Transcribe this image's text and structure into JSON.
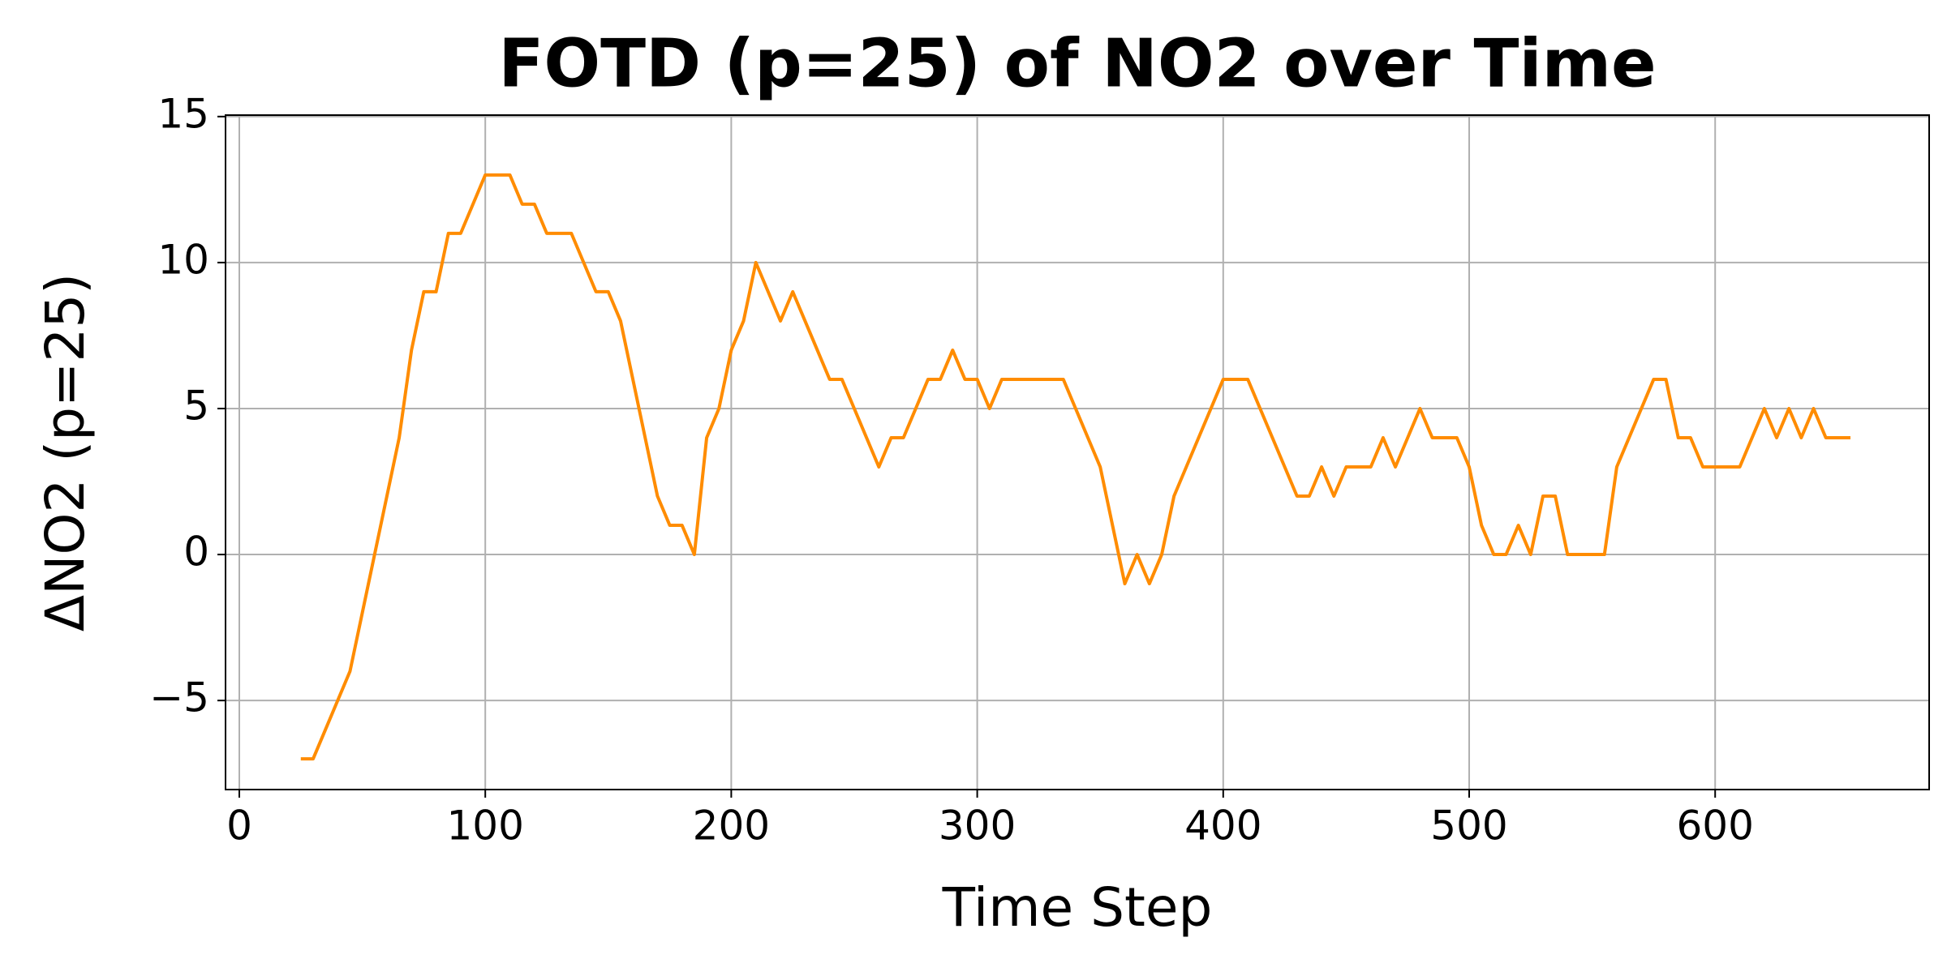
{
  "chart_data": {
    "type": "line",
    "title": "FOTD (p=25) of NO2 over Time",
    "x_label": "Time Step",
    "y_label": "ΔNO2 (p=25)",
    "x": [
      25,
      30,
      35,
      40,
      45,
      50,
      55,
      60,
      65,
      70,
      75,
      80,
      85,
      90,
      95,
      100,
      105,
      110,
      115,
      120,
      125,
      130,
      135,
      140,
      145,
      150,
      155,
      160,
      165,
      170,
      175,
      180,
      185,
      190,
      195,
      200,
      205,
      210,
      215,
      220,
      225,
      230,
      235,
      240,
      245,
      250,
      255,
      260,
      265,
      270,
      275,
      280,
      285,
      290,
      295,
      300,
      305,
      310,
      315,
      320,
      325,
      330,
      335,
      340,
      345,
      350,
      355,
      360,
      365,
      370,
      375,
      380,
      385,
      390,
      395,
      400,
      405,
      410,
      415,
      420,
      425,
      430,
      435,
      440,
      445,
      450,
      455,
      460,
      465,
      470,
      475,
      480,
      485,
      490,
      495,
      500,
      505,
      510,
      515,
      520,
      525,
      530,
      535,
      540,
      545,
      550,
      555,
      560,
      565,
      570,
      575,
      580,
      585,
      590,
      595,
      600,
      605,
      610,
      615,
      620,
      625,
      630,
      635,
      640,
      645,
      650,
      655
    ],
    "series": [
      {
        "name": "ΔNO2",
        "color": "#ff8c00",
        "values": [
          -7,
          -7,
          -6,
          -5,
          -4,
          -2,
          0,
          2,
          4,
          7,
          9,
          9,
          11,
          11,
          12,
          13,
          13,
          13,
          12,
          12,
          11,
          11,
          11,
          10,
          9,
          9,
          8,
          6,
          4,
          2,
          1,
          1,
          0,
          4,
          5,
          7,
          8,
          10,
          9,
          8,
          9,
          8,
          7,
          6,
          6,
          5,
          4,
          3,
          4,
          4,
          5,
          6,
          6,
          7,
          6,
          6,
          5,
          6,
          6,
          6,
          6,
          6,
          6,
          5,
          4,
          3,
          1,
          -1,
          0,
          -1,
          0,
          2,
          3,
          4,
          5,
          6,
          6,
          6,
          5,
          4,
          3,
          2,
          2,
          3,
          2,
          3,
          3,
          3,
          4,
          3,
          4,
          5,
          4,
          4,
          4,
          3,
          1,
          0,
          0,
          1,
          0,
          2,
          2,
          0,
          0,
          0,
          0,
          3,
          4,
          5,
          6,
          6,
          4,
          4,
          3,
          3,
          3,
          3,
          4,
          5,
          4,
          5,
          4,
          5,
          4,
          4,
          4
        ]
      }
    ],
    "xlim": [
      -5.6,
      687
    ],
    "ylim": [
      -8.05,
      15.05
    ],
    "xticks": [
      0,
      100,
      200,
      300,
      400,
      500,
      600
    ],
    "yticks": [
      {
        "value": -5,
        "label": "−5"
      },
      0,
      5,
      10,
      15
    ],
    "grid": true
  }
}
